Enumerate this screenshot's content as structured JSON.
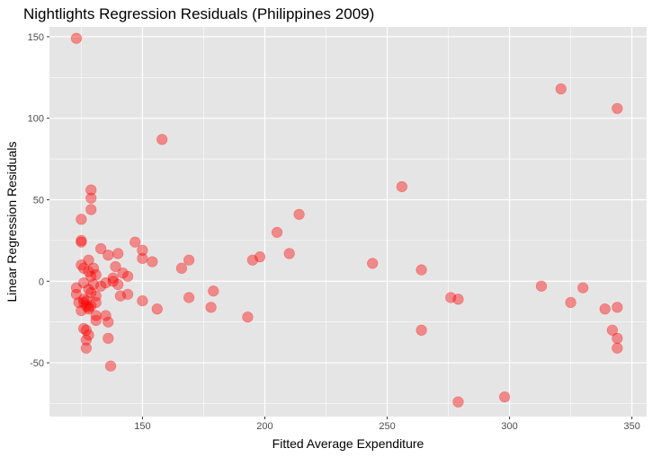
{
  "chart_data": {
    "type": "scatter",
    "title": "Nightlights Regression Residuals (Philippines 2009)",
    "xlabel": "Fitted Average Expenditure",
    "ylabel": "Linear Regression Residuals",
    "xlim": [
      112,
      356
    ],
    "ylim": [
      -83,
      156
    ],
    "xticks": [
      150,
      200,
      250,
      300,
      350
    ],
    "yticks": [
      -50,
      0,
      50,
      100,
      150
    ],
    "xtick_labels": [
      "150",
      "200",
      "250",
      "300",
      "350"
    ],
    "ytick_labels": [
      "-50",
      "0",
      "50",
      "100",
      "150"
    ],
    "grid": true,
    "panel_background": "#e5e5e5",
    "grid_color": "#ffffff",
    "point_color": "#ff0000",
    "point_opacity": 0.4,
    "points": [
      {
        "x": 123,
        "y": 149
      },
      {
        "x": 123,
        "y": -4
      },
      {
        "x": 123,
        "y": -8
      },
      {
        "x": 124,
        "y": -13
      },
      {
        "x": 125,
        "y": 38
      },
      {
        "x": 125,
        "y": 25
      },
      {
        "x": 125,
        "y": 24
      },
      {
        "x": 125,
        "y": 10
      },
      {
        "x": 125,
        "y": -18
      },
      {
        "x": 126,
        "y": 8
      },
      {
        "x": 126,
        "y": -1
      },
      {
        "x": 126,
        "y": -11
      },
      {
        "x": 126,
        "y": -13
      },
      {
        "x": 126,
        "y": -29
      },
      {
        "x": 127,
        "y": -12
      },
      {
        "x": 127,
        "y": -15
      },
      {
        "x": 127,
        "y": -30
      },
      {
        "x": 127,
        "y": -36
      },
      {
        "x": 127,
        "y": -41
      },
      {
        "x": 128,
        "y": 13
      },
      {
        "x": 128,
        "y": 6
      },
      {
        "x": 128,
        "y": -5
      },
      {
        "x": 128,
        "y": -17
      },
      {
        "x": 128,
        "y": -33
      },
      {
        "x": 128,
        "y": -16
      },
      {
        "x": 129,
        "y": 56
      },
      {
        "x": 129,
        "y": 51
      },
      {
        "x": 129,
        "y": 44
      },
      {
        "x": 129,
        "y": 3
      },
      {
        "x": 129,
        "y": -7
      },
      {
        "x": 129,
        "y": -15
      },
      {
        "x": 130,
        "y": 8
      },
      {
        "x": 130,
        "y": -2
      },
      {
        "x": 131,
        "y": 4
      },
      {
        "x": 131,
        "y": -9
      },
      {
        "x": 131,
        "y": -13
      },
      {
        "x": 131,
        "y": -21
      },
      {
        "x": 131,
        "y": -24
      },
      {
        "x": 133,
        "y": 20
      },
      {
        "x": 133,
        "y": -3
      },
      {
        "x": 135,
        "y": -1
      },
      {
        "x": 135,
        "y": -21
      },
      {
        "x": 136,
        "y": 16
      },
      {
        "x": 136,
        "y": -25
      },
      {
        "x": 136,
        "y": -35
      },
      {
        "x": 137,
        "y": -52
      },
      {
        "x": 138,
        "y": 2
      },
      {
        "x": 138,
        "y": 0
      },
      {
        "x": 139,
        "y": 9
      },
      {
        "x": 140,
        "y": 17
      },
      {
        "x": 140,
        "y": -2
      },
      {
        "x": 141,
        "y": -9
      },
      {
        "x": 142,
        "y": 5
      },
      {
        "x": 144,
        "y": 3
      },
      {
        "x": 144,
        "y": -8
      },
      {
        "x": 147,
        "y": 24
      },
      {
        "x": 150,
        "y": 19
      },
      {
        "x": 150,
        "y": 14
      },
      {
        "x": 150,
        "y": -12
      },
      {
        "x": 154,
        "y": 12
      },
      {
        "x": 156,
        "y": -17
      },
      {
        "x": 158,
        "y": 87
      },
      {
        "x": 166,
        "y": 8
      },
      {
        "x": 169,
        "y": 13
      },
      {
        "x": 169,
        "y": -10
      },
      {
        "x": 178,
        "y": -16
      },
      {
        "x": 179,
        "y": -6
      },
      {
        "x": 193,
        "y": -22
      },
      {
        "x": 195,
        "y": 13
      },
      {
        "x": 198,
        "y": 15
      },
      {
        "x": 205,
        "y": 30
      },
      {
        "x": 210,
        "y": 17
      },
      {
        "x": 214,
        "y": 41
      },
      {
        "x": 244,
        "y": 11
      },
      {
        "x": 256,
        "y": 58
      },
      {
        "x": 264,
        "y": 7
      },
      {
        "x": 264,
        "y": -30
      },
      {
        "x": 276,
        "y": -10
      },
      {
        "x": 279,
        "y": -11
      },
      {
        "x": 279,
        "y": -74
      },
      {
        "x": 298,
        "y": -71
      },
      {
        "x": 313,
        "y": -3
      },
      {
        "x": 321,
        "y": 118
      },
      {
        "x": 325,
        "y": -13
      },
      {
        "x": 330,
        "y": -4
      },
      {
        "x": 339,
        "y": -17
      },
      {
        "x": 342,
        "y": -30
      },
      {
        "x": 344,
        "y": 106
      },
      {
        "x": 344,
        "y": -16
      },
      {
        "x": 344,
        "y": -35
      },
      {
        "x": 344,
        "y": -41
      }
    ]
  }
}
